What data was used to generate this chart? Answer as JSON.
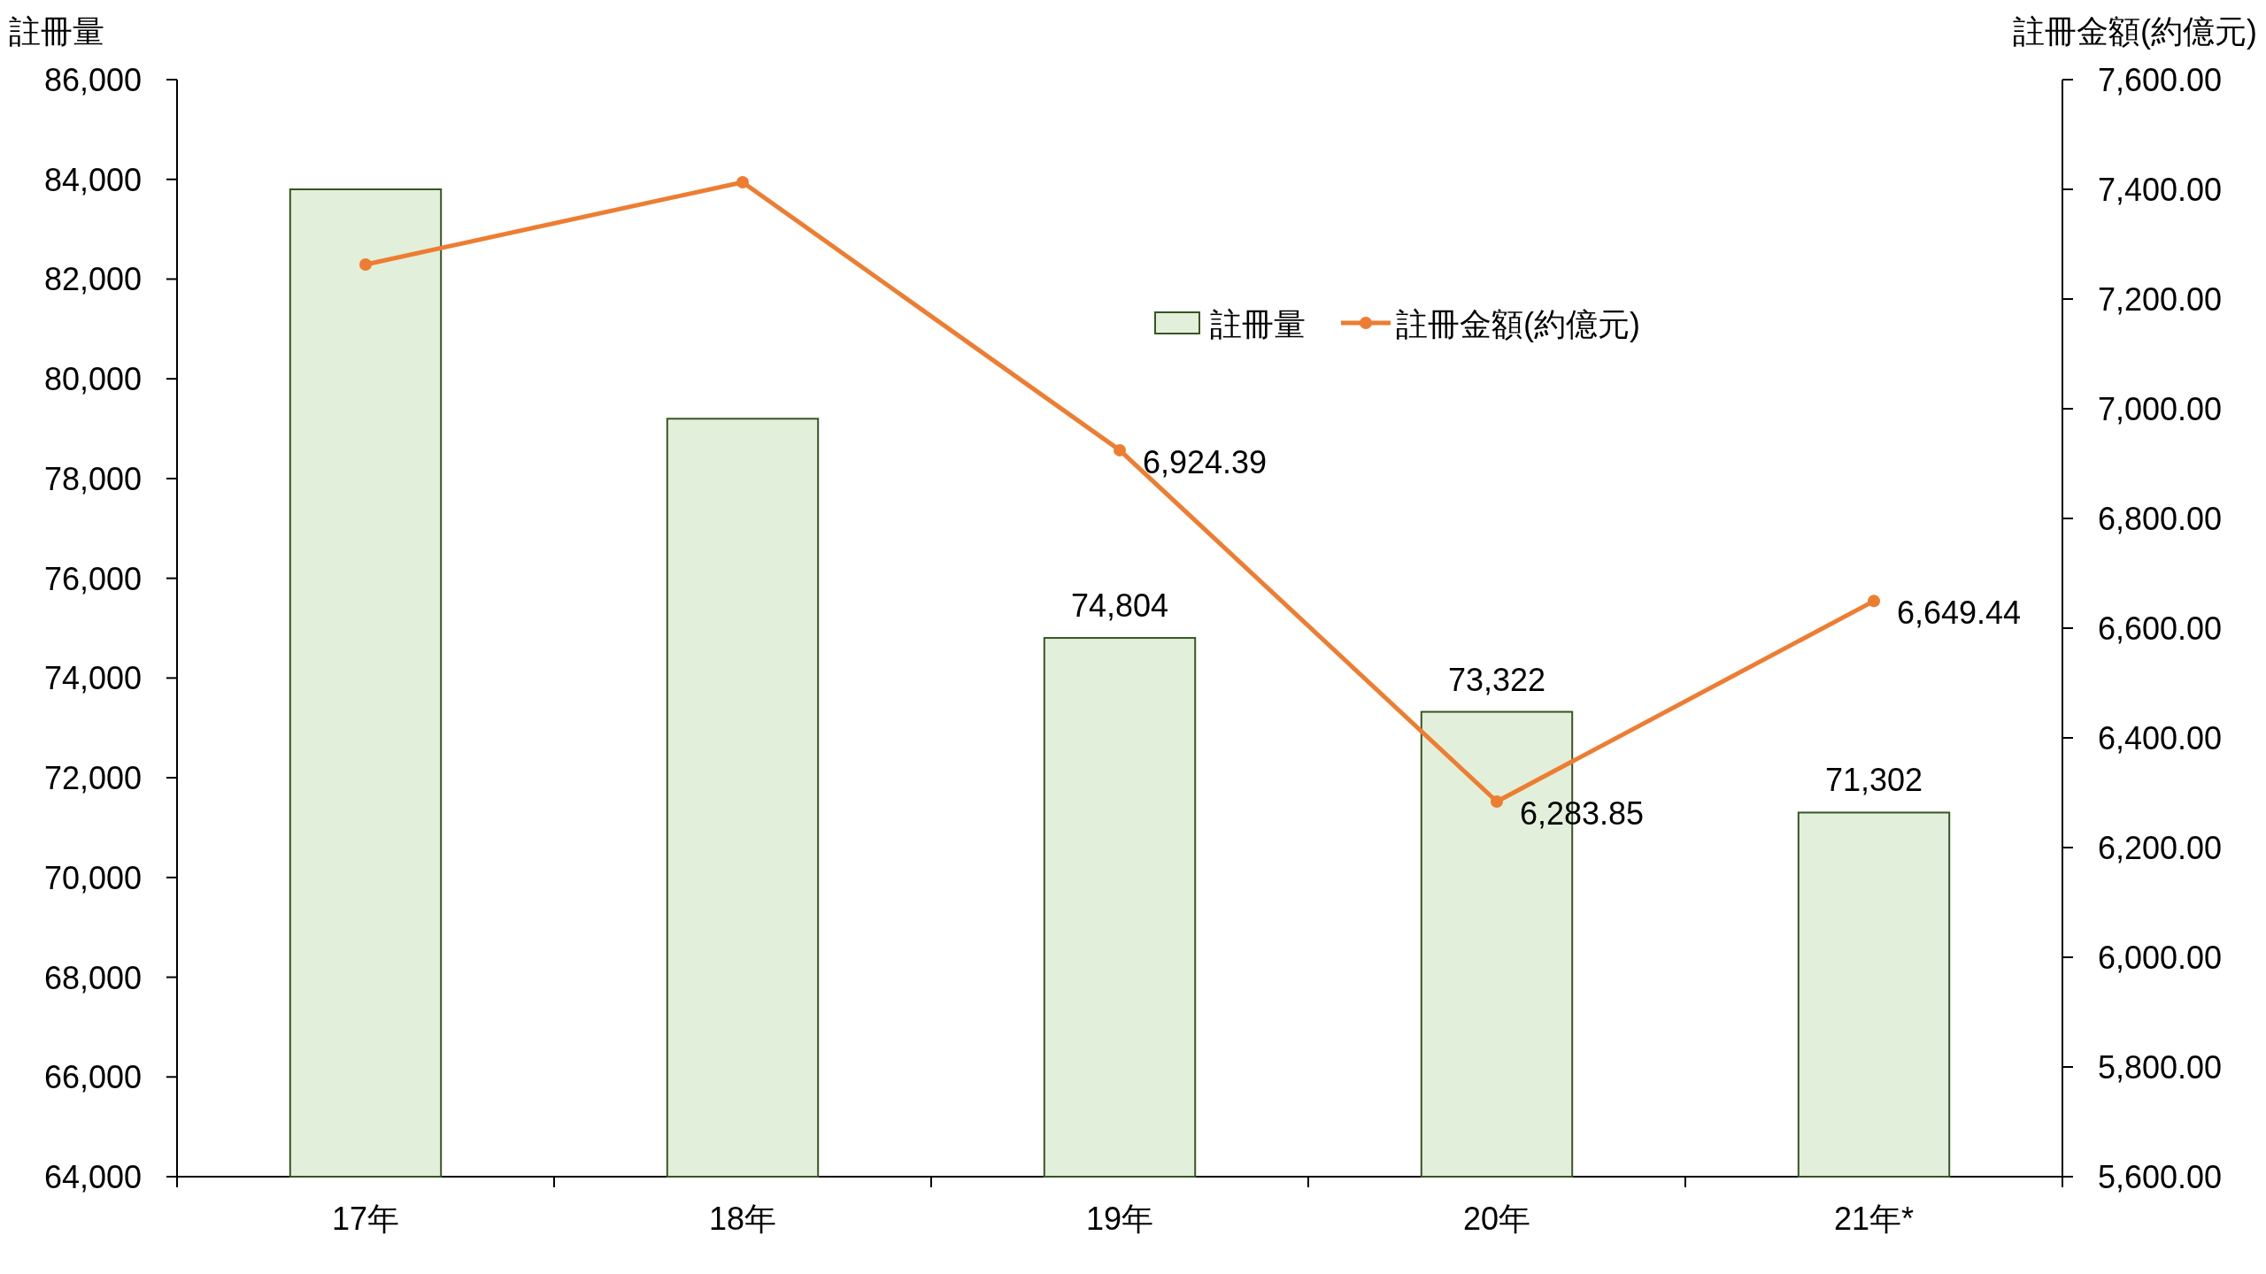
{
  "chart_data": {
    "type": "bar",
    "ylabel": "註冊量",
    "y2label": "註冊金額(約億元)",
    "categories": [
      "17年",
      "18年",
      "19年",
      "20年",
      "21年*"
    ],
    "series": [
      {
        "name": "註冊量",
        "color": "#e2efda",
        "values": [
          83800,
          79200,
          74804,
          73322,
          71302
        ],
        "value_labels": [
          null,
          null,
          "74,804",
          "73,322",
          "71,302"
        ]
      },
      {
        "name": "註冊金額(約億元)",
        "type": "line",
        "axis": "y2",
        "color": "#ed7d31",
        "values": [
          7263,
          7413,
          6924.39,
          6283.85,
          6649.44
        ],
        "value_labels": [
          null,
          null,
          "6,924.39",
          "6,283.85",
          "6,649.44"
        ]
      }
    ],
    "ylim": [
      64000,
      86000
    ],
    "yticks": [
      {
        "value": 64000,
        "label": "64,000"
      },
      {
        "value": 66000,
        "label": "66,000"
      },
      {
        "value": 68000,
        "label": "68,000"
      },
      {
        "value": 70000,
        "label": "70,000"
      },
      {
        "value": 72000,
        "label": "72,000"
      },
      {
        "value": 74000,
        "label": "74,000"
      },
      {
        "value": 76000,
        "label": "76,000"
      },
      {
        "value": 78000,
        "label": "78,000"
      },
      {
        "value": 80000,
        "label": "80,000"
      },
      {
        "value": 82000,
        "label": "82,000"
      },
      {
        "value": 84000,
        "label": "84,000"
      },
      {
        "value": 86000,
        "label": "86,000"
      }
    ],
    "y2lim": [
      5600,
      7600
    ],
    "y2ticks": [
      {
        "value": 5600,
        "label": "5,600.00"
      },
      {
        "value": 5800,
        "label": "5,800.00"
      },
      {
        "value": 6000,
        "label": "6,000.00"
      },
      {
        "value": 6200,
        "label": "6,200.00"
      },
      {
        "value": 6400,
        "label": "6,400.00"
      },
      {
        "value": 6600,
        "label": "6,600.00"
      },
      {
        "value": 6800,
        "label": "6,800.00"
      },
      {
        "value": 7000,
        "label": "7,000.00"
      },
      {
        "value": 7200,
        "label": "7,200.00"
      },
      {
        "value": 7400,
        "label": "7,400.00"
      },
      {
        "value": 7600,
        "label": "7,600.00"
      }
    ],
    "legend": "top",
    "marker": "circle",
    "grid": false
  }
}
